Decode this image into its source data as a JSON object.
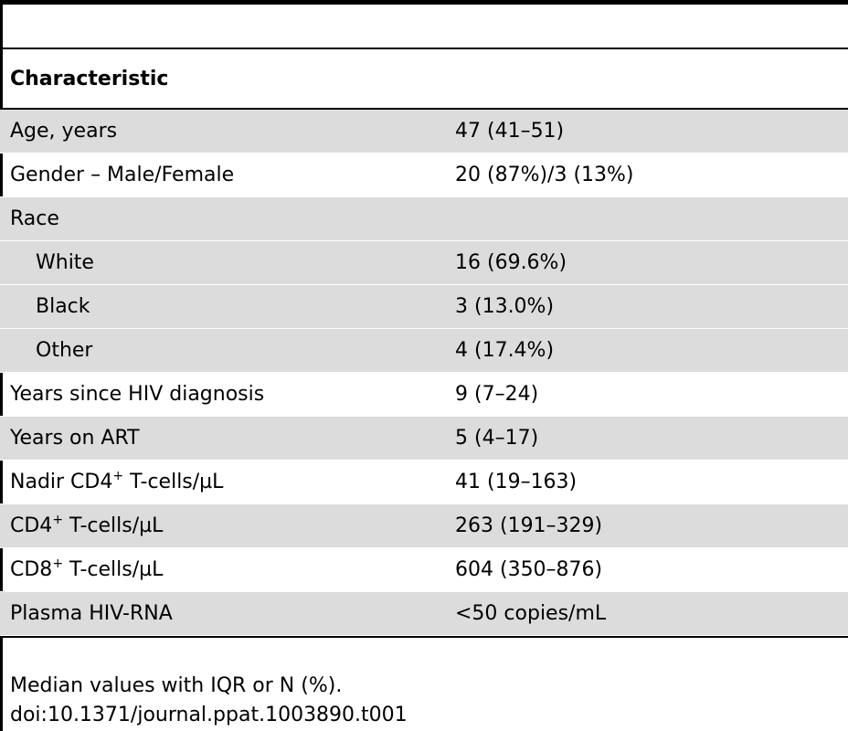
{
  "table": {
    "header": "Characteristic",
    "rows": [
      {
        "label": "Age, years",
        "value": "47 (41–51)"
      },
      {
        "label": "Gender – Male/Female",
        "value": "20 (87%)/3 (13%)"
      },
      {
        "label": "Race",
        "value": ""
      },
      {
        "label": "White",
        "value": "16 (69.6%)"
      },
      {
        "label": "Black",
        "value": "3 (13.0%)"
      },
      {
        "label": "Other",
        "value": "4 (17.4%)"
      },
      {
        "label": "Years since HIV diagnosis",
        "value": "9 (7–24)"
      },
      {
        "label": "Years on ART",
        "value": "5 (4–17)"
      },
      {
        "label_pre": "Nadir CD4",
        "label_sup": "+",
        "label_post": " T-cells/µL",
        "value": "41 (19–163)"
      },
      {
        "label_pre": "CD4",
        "label_sup": "+",
        "label_post": " T-cells/µL",
        "value": "263 (191–329)"
      },
      {
        "label_pre": "CD8",
        "label_sup": "+",
        "label_post": " T-cells/µL",
        "value": "604 (350–876)"
      },
      {
        "label": "Plasma HIV-RNA",
        "value": "<50 copies/mL"
      }
    ]
  },
  "footer": {
    "note": "Median values with IQR or N (%).",
    "doi": "doi:10.1371/journal.ppat.1003890.t001"
  }
}
